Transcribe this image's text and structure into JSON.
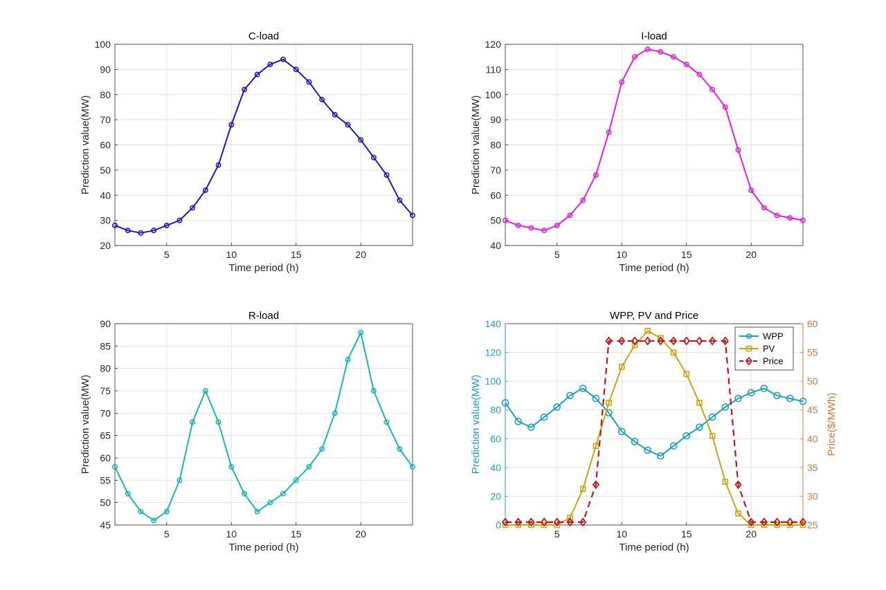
{
  "chart_data": [
    {
      "id": "c-load",
      "type": "line",
      "title": "C-load",
      "xlabel": "Time period (h)",
      "ylabel": "Prediction value(MW)",
      "xlim": [
        1,
        24
      ],
      "ylim": [
        20,
        100
      ],
      "xticks": [
        5,
        10,
        15,
        20
      ],
      "yticks": [
        20,
        30,
        40,
        50,
        60,
        70,
        80,
        90,
        100
      ],
      "grid": true,
      "x": [
        1,
        2,
        3,
        4,
        5,
        6,
        7,
        8,
        9,
        10,
        11,
        12,
        13,
        14,
        15,
        16,
        17,
        18,
        19,
        20,
        21,
        22,
        23,
        24
      ],
      "series": [
        {
          "values": [
            28,
            26,
            25,
            26,
            28,
            30,
            35,
            42,
            52,
            68,
            82,
            88,
            92,
            94,
            90,
            85,
            78,
            72,
            68,
            62,
            55,
            48,
            38,
            32
          ],
          "color": "#1a1ab3",
          "marker": "circle"
        }
      ]
    },
    {
      "id": "i-load",
      "type": "line",
      "title": "I-load",
      "xlabel": "Time period (h)",
      "ylabel": "Prediction value(MW)",
      "xlim": [
        1,
        24
      ],
      "ylim": [
        40,
        120
      ],
      "xticks": [
        5,
        10,
        15,
        20
      ],
      "yticks": [
        40,
        50,
        60,
        70,
        80,
        90,
        100,
        110,
        120
      ],
      "grid": true,
      "x": [
        1,
        2,
        3,
        4,
        5,
        6,
        7,
        8,
        9,
        10,
        11,
        12,
        13,
        14,
        15,
        16,
        17,
        18,
        19,
        20,
        21,
        22,
        23,
        24
      ],
      "series": [
        {
          "values": [
            50,
            48,
            47,
            46,
            48,
            52,
            58,
            68,
            85,
            105,
            115,
            118,
            117,
            115,
            112,
            108,
            102,
            95,
            78,
            62,
            55,
            52,
            51,
            50
          ],
          "color": "#e020e0",
          "marker": "circle"
        }
      ]
    },
    {
      "id": "r-load",
      "type": "line",
      "title": "R-load",
      "xlabel": "Time period (h)",
      "ylabel": "Prediction value(MW)",
      "xlim": [
        1,
        24
      ],
      "ylim": [
        45,
        90
      ],
      "xticks": [
        5,
        10,
        15,
        20
      ],
      "yticks": [
        45,
        50,
        55,
        60,
        65,
        70,
        75,
        80,
        85,
        90
      ],
      "grid": true,
      "x": [
        1,
        2,
        3,
        4,
        5,
        6,
        7,
        8,
        9,
        10,
        11,
        12,
        13,
        14,
        15,
        16,
        17,
        18,
        19,
        20,
        21,
        22,
        23,
        24
      ],
      "series": [
        {
          "values": [
            58,
            52,
            48,
            46,
            48,
            55,
            68,
            75,
            68,
            58,
            52,
            48,
            50,
            52,
            55,
            58,
            62,
            70,
            82,
            88,
            75,
            68,
            62,
            58
          ],
          "color": "#1ab5b5",
          "marker": "circle"
        }
      ]
    },
    {
      "id": "wpp-pv-price",
      "type": "line",
      "title": "WPP, PV and Price",
      "xlabel": "Time period (h)",
      "ylabel": "Prediction value(MW)",
      "ylabel_right": "Price($/MWh)",
      "left_axis_color": "#1f9ec4",
      "right_axis_color": "#d4783a",
      "xlim": [
        1,
        24
      ],
      "ylim": [
        0,
        140
      ],
      "ylim_right": [
        25,
        60
      ],
      "xticks": [
        5,
        10,
        15,
        20
      ],
      "yticks": [
        0,
        20,
        40,
        60,
        80,
        100,
        120,
        140
      ],
      "yticks_right": [
        25,
        30,
        35,
        40,
        45,
        50,
        55,
        60
      ],
      "grid": true,
      "legend": "top-right",
      "x": [
        1,
        2,
        3,
        4,
        5,
        6,
        7,
        8,
        9,
        10,
        11,
        12,
        13,
        14,
        15,
        16,
        17,
        18,
        19,
        20,
        21,
        22,
        23,
        24
      ],
      "series": [
        {
          "name": "WPP",
          "axis": "left",
          "values": [
            85,
            72,
            68,
            75,
            82,
            90,
            95,
            88,
            78,
            65,
            58,
            52,
            48,
            55,
            62,
            68,
            75,
            82,
            88,
            92,
            95,
            90,
            88,
            86
          ],
          "color": "#1f9ec4",
          "marker": "circle",
          "dash": "solid"
        },
        {
          "name": "PV",
          "axis": "left",
          "values": [
            0,
            0,
            0,
            0,
            0,
            5,
            25,
            55,
            85,
            110,
            125,
            135,
            130,
            120,
            105,
            85,
            62,
            30,
            8,
            0,
            0,
            0,
            0,
            0
          ],
          "color": "#c9a414",
          "marker": "square",
          "dash": "solid"
        },
        {
          "name": "Price",
          "axis": "right",
          "values": [
            25.5,
            25.5,
            25.5,
            25.5,
            25.5,
            25.5,
            25.5,
            32,
            57,
            57,
            57,
            57,
            57,
            57,
            57,
            57,
            57,
            57,
            32,
            25.5,
            25.5,
            25.5,
            25.5,
            25.5
          ],
          "color": "#b81a1a",
          "marker": "diamond",
          "dash": "dashed"
        }
      ]
    }
  ]
}
